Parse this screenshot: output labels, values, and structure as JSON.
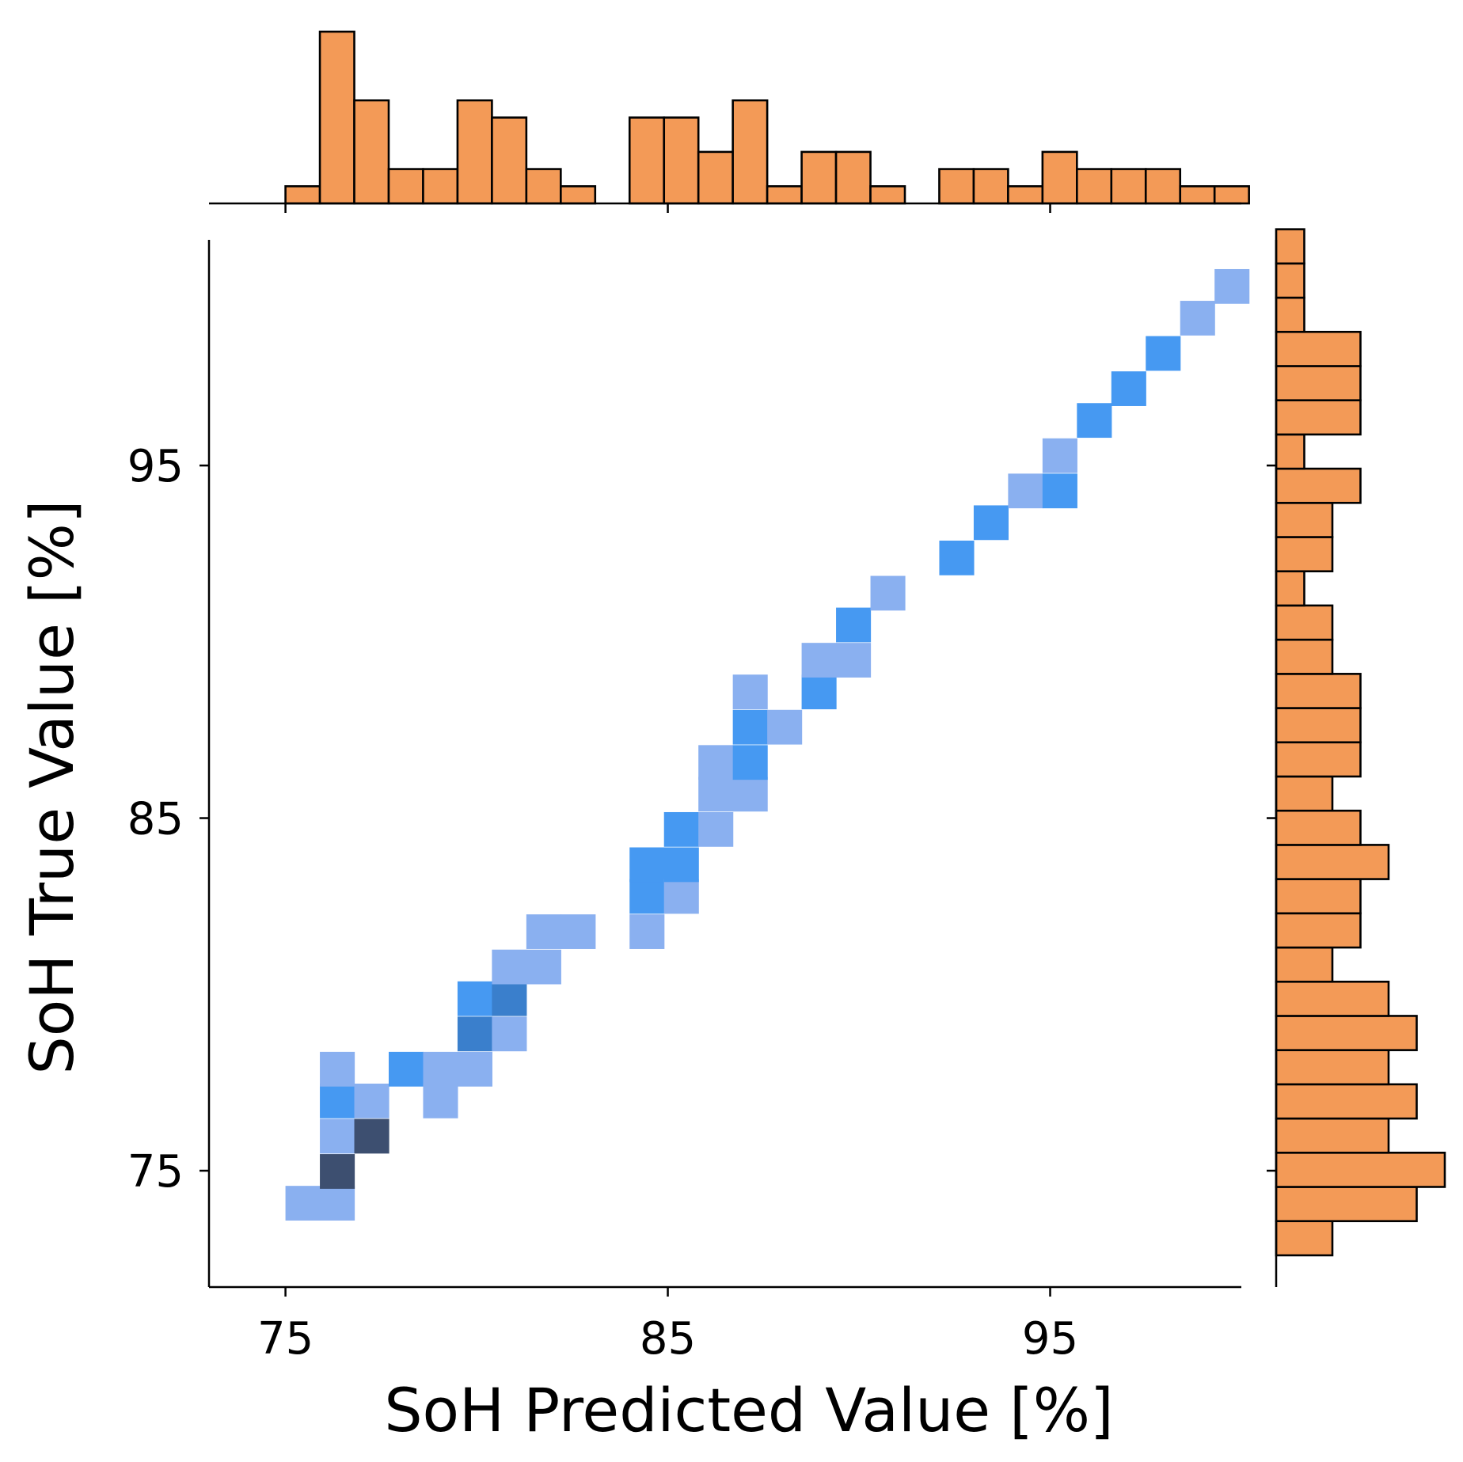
{
  "chart_data": {
    "type": "heatmap",
    "xlabel": "SoH Predicted Value [%]",
    "ylabel": "SoH True Value [%]",
    "xlim": [
      73,
      100
    ],
    "ylim": [
      71.7,
      101.4
    ],
    "xticks": [
      75,
      85,
      95
    ],
    "yticks": [
      75,
      85,
      95
    ],
    "bin_width_x": 0.9,
    "bin_height_y": 0.97,
    "colors": {
      "light": "#8ab0f0",
      "mid": "#4699f2",
      "dark": "#3a7fcc",
      "darkest": "#3d4f70",
      "hist_fill": "#f39a57",
      "hist_edge": "#000000"
    },
    "cells": [
      {
        "x": 75.0,
        "y": 73.6,
        "level": "light"
      },
      {
        "x": 75.9,
        "y": 73.6,
        "level": "light"
      },
      {
        "x": 75.9,
        "y": 74.5,
        "level": "darkest"
      },
      {
        "x": 75.9,
        "y": 75.5,
        "level": "light"
      },
      {
        "x": 75.9,
        "y": 76.5,
        "level": "mid"
      },
      {
        "x": 75.9,
        "y": 77.4,
        "level": "light"
      },
      {
        "x": 76.8,
        "y": 75.5,
        "level": "darkest"
      },
      {
        "x": 76.8,
        "y": 76.5,
        "level": "light"
      },
      {
        "x": 77.7,
        "y": 77.4,
        "level": "mid"
      },
      {
        "x": 78.6,
        "y": 77.4,
        "level": "light"
      },
      {
        "x": 78.6,
        "y": 76.5,
        "level": "light"
      },
      {
        "x": 79.5,
        "y": 77.4,
        "level": "light"
      },
      {
        "x": 79.5,
        "y": 78.4,
        "level": "dark"
      },
      {
        "x": 79.5,
        "y": 79.4,
        "level": "mid"
      },
      {
        "x": 80.4,
        "y": 78.4,
        "level": "light"
      },
      {
        "x": 80.4,
        "y": 79.4,
        "level": "dark"
      },
      {
        "x": 80.4,
        "y": 80.3,
        "level": "light"
      },
      {
        "x": 81.3,
        "y": 80.3,
        "level": "light"
      },
      {
        "x": 81.3,
        "y": 81.3,
        "level": "light"
      },
      {
        "x": 82.2,
        "y": 81.3,
        "level": "light"
      },
      {
        "x": 84.0,
        "y": 81.3,
        "level": "light"
      },
      {
        "x": 84.0,
        "y": 82.3,
        "level": "mid"
      },
      {
        "x": 84.0,
        "y": 83.2,
        "level": "mid"
      },
      {
        "x": 84.9,
        "y": 82.3,
        "level": "light"
      },
      {
        "x": 84.9,
        "y": 83.2,
        "level": "mid"
      },
      {
        "x": 84.9,
        "y": 84.2,
        "level": "mid"
      },
      {
        "x": 85.8,
        "y": 84.2,
        "level": "light"
      },
      {
        "x": 85.8,
        "y": 85.2,
        "level": "light"
      },
      {
        "x": 85.8,
        "y": 86.1,
        "level": "light"
      },
      {
        "x": 86.7,
        "y": 85.2,
        "level": "light"
      },
      {
        "x": 86.7,
        "y": 86.1,
        "level": "mid"
      },
      {
        "x": 86.7,
        "y": 87.1,
        "level": "mid"
      },
      {
        "x": 86.7,
        "y": 88.1,
        "level": "light"
      },
      {
        "x": 87.6,
        "y": 87.1,
        "level": "light"
      },
      {
        "x": 88.5,
        "y": 88.1,
        "level": "mid"
      },
      {
        "x": 88.5,
        "y": 89.0,
        "level": "light"
      },
      {
        "x": 89.4,
        "y": 89.0,
        "level": "light"
      },
      {
        "x": 89.4,
        "y": 90.0,
        "level": "mid"
      },
      {
        "x": 90.3,
        "y": 90.9,
        "level": "light"
      },
      {
        "x": 92.1,
        "y": 91.9,
        "level": "mid"
      },
      {
        "x": 93.0,
        "y": 92.9,
        "level": "mid"
      },
      {
        "x": 93.9,
        "y": 93.8,
        "level": "light"
      },
      {
        "x": 94.8,
        "y": 93.8,
        "level": "mid"
      },
      {
        "x": 94.8,
        "y": 94.8,
        "level": "light"
      },
      {
        "x": 95.7,
        "y": 95.8,
        "level": "mid"
      },
      {
        "x": 96.6,
        "y": 96.7,
        "level": "mid"
      },
      {
        "x": 97.5,
        "y": 97.7,
        "level": "mid"
      },
      {
        "x": 98.4,
        "y": 98.7,
        "level": "light"
      },
      {
        "x": 99.3,
        "y": 99.6,
        "level": "light"
      }
    ],
    "top_histogram": {
      "start": 75.0,
      "bin_width": 0.9,
      "counts": [
        1,
        10,
        6,
        2,
        2,
        6,
        5,
        2,
        1,
        0,
        5,
        5,
        3,
        6,
        1,
        3,
        3,
        1,
        0,
        2,
        2,
        1,
        3,
        2,
        2,
        2,
        1,
        1
      ]
    },
    "right_histogram": {
      "start": 72.6,
      "bin_width": 0.97,
      "counts": [
        2,
        5,
        6,
        4,
        5,
        4,
        5,
        4,
        2,
        3,
        3,
        4,
        3,
        2,
        3,
        3,
        3,
        2,
        2,
        1,
        2,
        2,
        3,
        1,
        3,
        3,
        3,
        1,
        1,
        1
      ]
    }
  }
}
